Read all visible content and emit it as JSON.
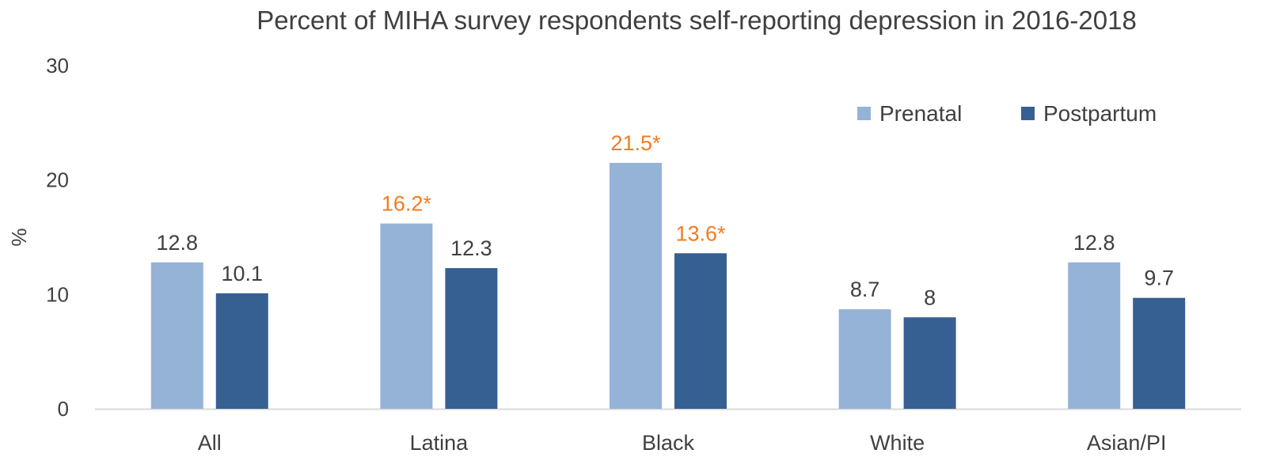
{
  "chart_data": {
    "type": "bar",
    "title": "Percent of MIHA survey respondents self-reporting depression in 2016-2018",
    "xlabel": "",
    "ylabel": "%",
    "ylim": [
      0,
      30
    ],
    "yticks": [
      0,
      10,
      20,
      30
    ],
    "grid": false,
    "legend_position": "top-right",
    "categories": [
      "All",
      "Latina",
      "Black",
      "White",
      "Asian/PI"
    ],
    "series": [
      {
        "name": "Prenatal",
        "color": "#95B3D7",
        "values": [
          12.8,
          16.2,
          21.5,
          8.7,
          12.8
        ],
        "labels": [
          "12.8",
          "16.2*",
          "21.5*",
          "8.7",
          "12.8"
        ],
        "significant": [
          false,
          true,
          true,
          false,
          false
        ]
      },
      {
        "name": "Postpartum",
        "color": "#366092",
        "values": [
          10.1,
          12.3,
          13.6,
          8,
          9.7
        ],
        "labels": [
          "10.1",
          "12.3",
          "13.6*",
          "8",
          "9.7"
        ],
        "significant": [
          false,
          false,
          true,
          false,
          false
        ]
      }
    ],
    "label_color": "#404040",
    "significant_label_color": "#F47B20",
    "axis_color": "#D9D9D9"
  }
}
